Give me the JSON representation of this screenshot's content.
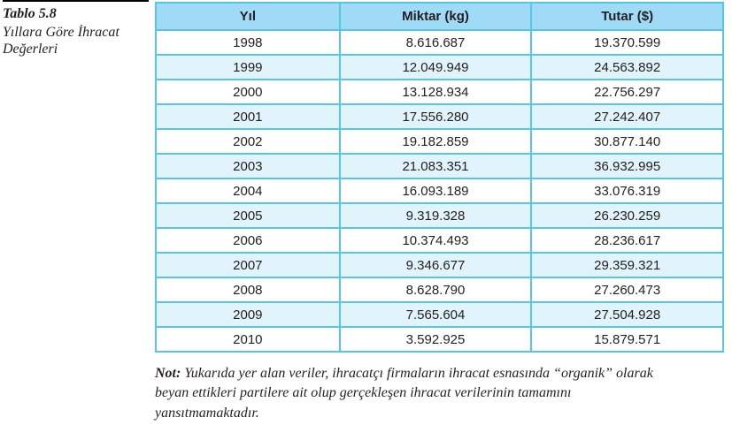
{
  "caption": {
    "title": "Tablo 5.8",
    "subtitle": "Yıllara Göre İhracat Değerleri"
  },
  "table": {
    "headers": [
      "Yıl",
      "Miktar (kg)",
      "Tutar ($)"
    ],
    "rows": [
      [
        "1998",
        "8.616.687",
        "19.370.599"
      ],
      [
        "1999",
        "12.049.949",
        "24.563.892"
      ],
      [
        "2000",
        "13.128.934",
        "22.756.297"
      ],
      [
        "2001",
        "17.556.280",
        "27.242.407"
      ],
      [
        "2002",
        "19.182.859",
        "30.877.140"
      ],
      [
        "2003",
        "21.083.351",
        "36.932.995"
      ],
      [
        "2004",
        "16.093.189",
        "33.076.319"
      ],
      [
        "2005",
        "9.319.328",
        "26.230.259"
      ],
      [
        "2006",
        "10.374.493",
        "28.236.617"
      ],
      [
        "2007",
        "9.346.677",
        "29.359.321"
      ],
      [
        "2008",
        "8.628.790",
        "27.260.473"
      ],
      [
        "2009",
        "7.565.604",
        "27.504.928"
      ],
      [
        "2010",
        "3.592.925",
        "15.879.571"
      ]
    ]
  },
  "note": {
    "label": "Not:",
    "text": "Yukarıda yer alan veriler, ihracatçı firmaların ihracat esnasında “organik” olarak beyan ettikleri partilere ait olup gerçekleşen ihracat verilerinin tamamını yansıtmamaktadır."
  },
  "colors": {
    "header-bg": "#9fdbf6",
    "row-alt-bg": "#e1f3fb",
    "border": "#55c6e8",
    "text": "#231f20",
    "page-bg": "#ffffff"
  }
}
